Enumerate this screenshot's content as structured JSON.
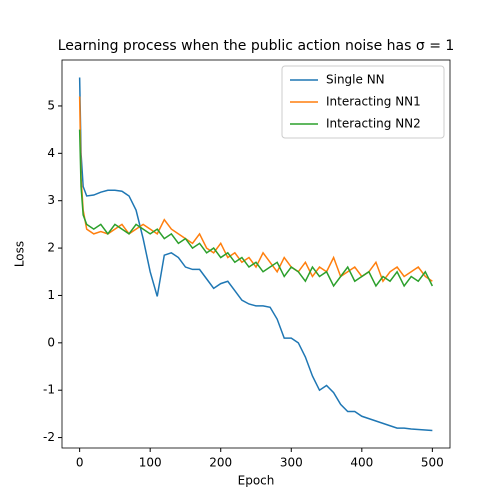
{
  "chart_data": {
    "type": "line",
    "title": "Learning process when the public action noise has σ = 1",
    "xlabel": "Epoch",
    "ylabel": "Loss",
    "x": [
      0,
      2,
      5,
      10,
      20,
      30,
      40,
      50,
      60,
      70,
      80,
      90,
      100,
      110,
      120,
      130,
      140,
      150,
      160,
      170,
      180,
      190,
      200,
      210,
      220,
      230,
      240,
      250,
      260,
      270,
      280,
      290,
      300,
      310,
      320,
      330,
      340,
      350,
      360,
      370,
      380,
      390,
      400,
      410,
      420,
      430,
      440,
      450,
      460,
      470,
      480,
      490,
      500
    ],
    "series": [
      {
        "name": "Single NN",
        "color": "#1f77b4",
        "values": [
          5.6,
          4.0,
          3.3,
          3.1,
          3.12,
          3.18,
          3.22,
          3.22,
          3.2,
          3.1,
          2.8,
          2.2,
          1.5,
          0.98,
          1.85,
          1.9,
          1.8,
          1.6,
          1.55,
          1.55,
          1.35,
          1.15,
          1.25,
          1.3,
          1.1,
          0.9,
          0.82,
          0.78,
          0.78,
          0.75,
          0.5,
          0.1,
          0.1,
          0.0,
          -0.3,
          -0.7,
          -1.0,
          -0.9,
          -1.05,
          -1.3,
          -1.45,
          -1.45,
          -1.55,
          -1.6,
          -1.65,
          -1.7,
          -1.75,
          -1.8,
          -1.8,
          -1.82,
          -1.83,
          -1.84,
          -1.85
        ]
      },
      {
        "name": "Interacting NN1",
        "color": "#ff7f0e",
        "values": [
          5.2,
          3.5,
          2.8,
          2.4,
          2.3,
          2.35,
          2.3,
          2.4,
          2.5,
          2.3,
          2.4,
          2.5,
          2.4,
          2.3,
          2.6,
          2.4,
          2.3,
          2.2,
          2.1,
          2.3,
          2.0,
          1.9,
          2.1,
          1.8,
          1.9,
          1.7,
          1.8,
          1.6,
          1.9,
          1.7,
          1.5,
          1.8,
          1.6,
          1.5,
          1.7,
          1.4,
          1.6,
          1.5,
          1.8,
          1.4,
          1.5,
          1.6,
          1.4,
          1.5,
          1.7,
          1.3,
          1.5,
          1.6,
          1.4,
          1.5,
          1.6,
          1.4,
          1.3
        ]
      },
      {
        "name": "Interacting NN2",
        "color": "#2ca02c",
        "values": [
          4.5,
          3.3,
          2.7,
          2.5,
          2.4,
          2.5,
          2.3,
          2.5,
          2.4,
          2.3,
          2.5,
          2.4,
          2.3,
          2.4,
          2.2,
          2.3,
          2.1,
          2.2,
          2.0,
          2.1,
          1.9,
          2.0,
          1.8,
          1.9,
          1.7,
          1.8,
          1.6,
          1.7,
          1.5,
          1.6,
          1.7,
          1.4,
          1.6,
          1.5,
          1.3,
          1.6,
          1.4,
          1.5,
          1.2,
          1.4,
          1.6,
          1.3,
          1.4,
          1.5,
          1.2,
          1.4,
          1.3,
          1.5,
          1.2,
          1.4,
          1.3,
          1.5,
          1.2
        ]
      }
    ],
    "xlim": [
      -25,
      525
    ],
    "xticks": [
      0,
      100,
      200,
      300,
      400,
      500
    ],
    "ylim": [
      -2.22,
      5.97
    ],
    "yticks": [
      -2,
      -1,
      0,
      1,
      2,
      3,
      4,
      5
    ],
    "legend": "upper right"
  }
}
